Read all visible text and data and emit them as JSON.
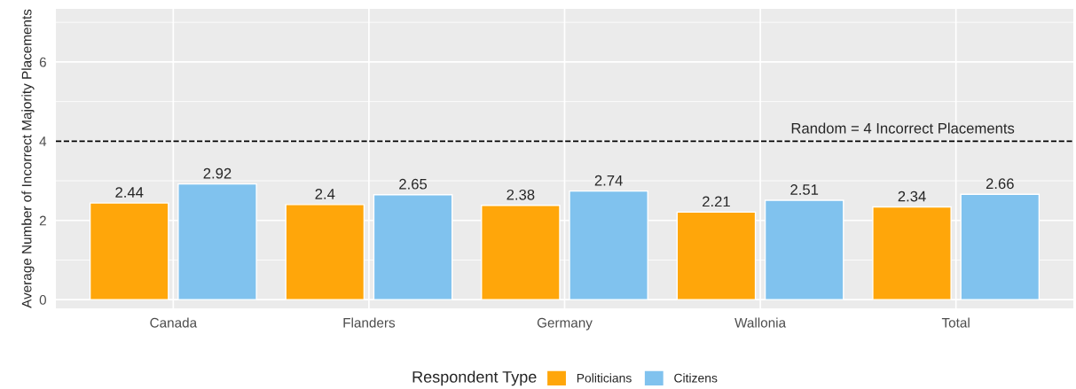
{
  "chart_data": {
    "type": "bar",
    "ylabel": "Average Number of Incorrect Majority Placements",
    "legend_title": "Respondent Type",
    "categories": [
      "Canada",
      "Flanders",
      "Germany",
      "Wallonia",
      "Total"
    ],
    "series": [
      {
        "name": "Politicians",
        "color": "#ffa60a",
        "values": [
          2.44,
          2.4,
          2.38,
          2.21,
          2.34
        ]
      },
      {
        "name": "Citizens",
        "color": "#80c2ee",
        "values": [
          2.92,
          2.65,
          2.74,
          2.51,
          2.66
        ]
      }
    ],
    "ylim": [
      -0.22,
      7.34
    ],
    "yticks": [
      0,
      2,
      4,
      6
    ],
    "ref_lines": [
      {
        "axis": "y",
        "value": 4,
        "label": "Random = 4 Incorrect Placements",
        "line_style": "dashed",
        "color": "#000000"
      }
    ],
    "data_labels": true,
    "grid": true,
    "legend": "bottom"
  }
}
